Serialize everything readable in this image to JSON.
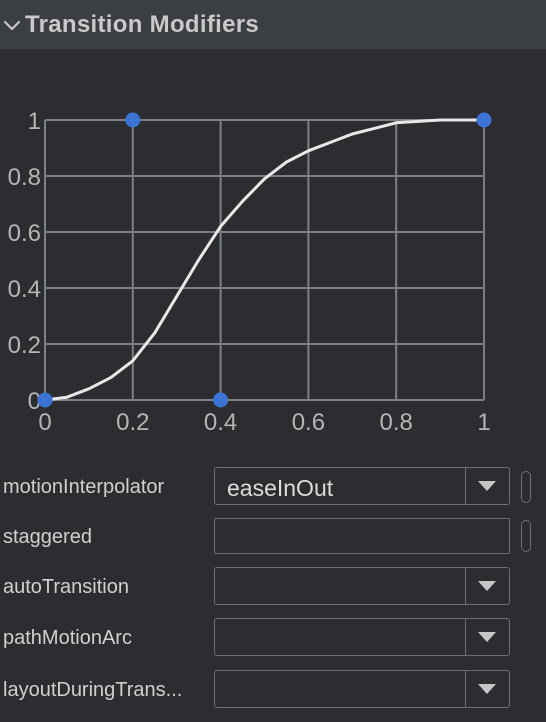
{
  "panel": {
    "title": "Transition Modifiers",
    "chevron_icon": "chevron-down-icon"
  },
  "chart_data": {
    "type": "line",
    "title": "",
    "xlabel": "",
    "ylabel": "",
    "xlim": [
      0,
      1
    ],
    "ylim": [
      0,
      1
    ],
    "grid": true,
    "x_ticks": [
      "0",
      "0.2",
      "0.4",
      "0.6",
      "0.8",
      "1"
    ],
    "y_ticks": [
      "0",
      "0.2",
      "0.4",
      "0.6",
      "0.8",
      "1"
    ],
    "curve": {
      "x": [
        0,
        0.05,
        0.1,
        0.15,
        0.2,
        0.25,
        0.3,
        0.35,
        0.4,
        0.45,
        0.5,
        0.55,
        0.6,
        0.65,
        0.7,
        0.75,
        0.8,
        0.85,
        0.9,
        0.95,
        1
      ],
      "y": [
        0,
        0.01,
        0.04,
        0.08,
        0.14,
        0.24,
        0.37,
        0.5,
        0.62,
        0.71,
        0.79,
        0.85,
        0.89,
        0.92,
        0.95,
        0.97,
        0.99,
        0.995,
        1,
        1,
        1
      ]
    },
    "control_points": [
      {
        "x": 0,
        "y": 0
      },
      {
        "x": 0.2,
        "y": 1
      },
      {
        "x": 0.4,
        "y": 0
      },
      {
        "x": 1,
        "y": 1
      }
    ],
    "colors": {
      "background": "#2b2d30",
      "grid": "#7c7f84",
      "curve": "#e8e8e8",
      "control_point": "#3b74d4"
    }
  },
  "properties": [
    {
      "label": "motionInterpolator",
      "type": "combo",
      "value": "easeInOut",
      "has_handle": true
    },
    {
      "label": "staggered",
      "type": "text",
      "value": "",
      "has_handle": true
    },
    {
      "label": "autoTransition",
      "type": "combo",
      "value": "",
      "has_handle": false
    },
    {
      "label": "pathMotionArc",
      "type": "combo",
      "value": "",
      "has_handle": false
    },
    {
      "label": "layoutDuringTrans...",
      "type": "combo",
      "value": "",
      "has_handle": false
    }
  ]
}
